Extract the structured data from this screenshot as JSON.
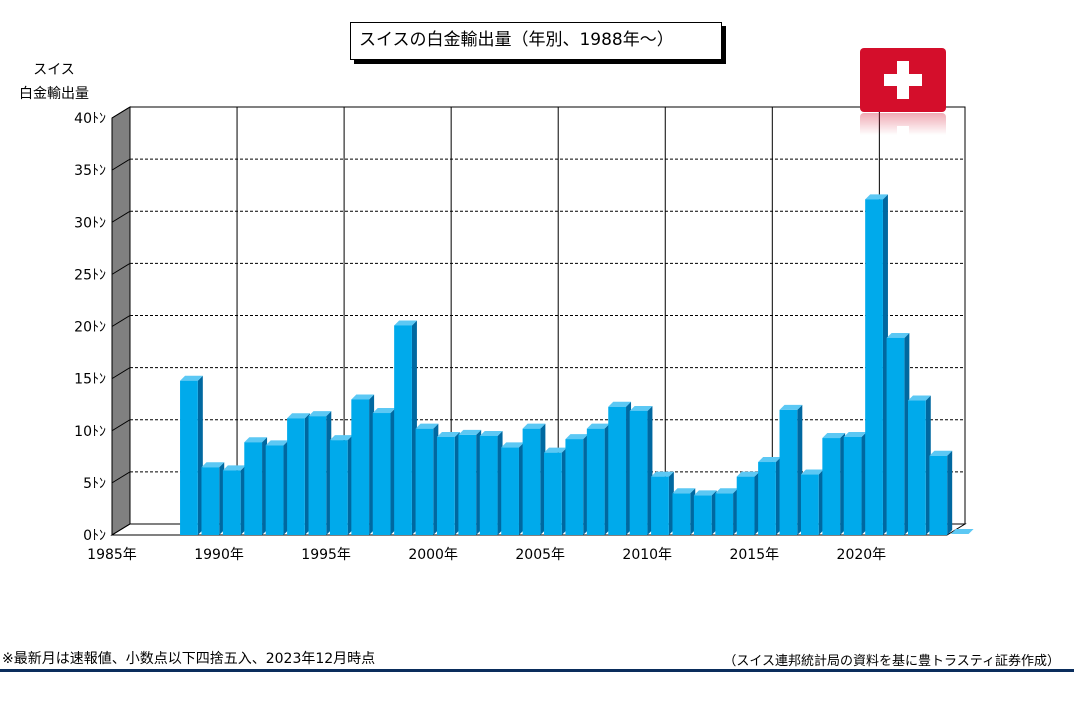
{
  "chart_data": {
    "type": "bar",
    "title": "スイスの白金輸出量（年別、1988年～）",
    "ylabel_line1": "スイス",
    "ylabel_line2": "白金輸出量",
    "y_unit": "ﾄﾝ",
    "ylim": [
      0,
      40
    ],
    "yticks": [
      0,
      5,
      10,
      15,
      20,
      25,
      30,
      35,
      40
    ],
    "xlim": [
      1985,
      2024
    ],
    "xticks": [
      1985,
      1990,
      1995,
      2000,
      2005,
      2010,
      2015,
      2020
    ],
    "x_unit": "年",
    "grid": true,
    "x": [
      1988,
      1989,
      1990,
      1991,
      1992,
      1993,
      1994,
      1995,
      1996,
      1997,
      1998,
      1999,
      2000,
      2001,
      2002,
      2003,
      2004,
      2005,
      2006,
      2007,
      2008,
      2009,
      2010,
      2011,
      2012,
      2013,
      2014,
      2015,
      2016,
      2017,
      2018,
      2019,
      2020,
      2021,
      2022,
      2023
    ],
    "values": [
      14.8,
      6.5,
      6.2,
      8.9,
      8.6,
      11.2,
      11.4,
      9.1,
      13.0,
      11.7,
      20.1,
      10.2,
      9.4,
      9.6,
      9.5,
      8.4,
      10.2,
      7.9,
      9.2,
      10.2,
      12.3,
      11.9,
      5.6,
      4.0,
      3.8,
      4.0,
      5.6,
      7.0,
      12.0,
      5.8,
      9.3,
      9.4,
      32.2,
      18.9,
      12.9,
      7.6
    ],
    "colors": {
      "bar_front": "#00aaeb",
      "bar_side": "#0068a0",
      "bar_top": "#5cc8f4",
      "floor": "#808080"
    }
  },
  "flag": {
    "icon": "swiss-flag-icon"
  },
  "footnote_left": "※最新月は速報値、小数点以下四捨五入、2023年12月時点",
  "footnote_right": "（スイス連邦統計局の資料を基に豊トラスティ証券作成）"
}
